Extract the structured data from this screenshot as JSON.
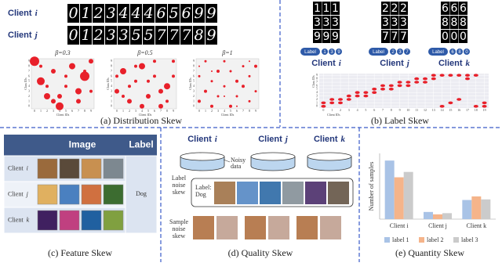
{
  "distribution_skew": {
    "caption": "(a) Distribution Skew",
    "rows": [
      {
        "client": "Client",
        "id": "i",
        "digits": [
          "0",
          "1",
          "2",
          "3",
          "4",
          "4",
          "4",
          "6",
          "5",
          "6",
          "9",
          "9"
        ]
      },
      {
        "client": "Client",
        "id": "j",
        "digits": [
          "0",
          "1",
          "2",
          "3",
          "3",
          "5",
          "5",
          "7",
          "7",
          "7",
          "8",
          "9"
        ]
      }
    ],
    "xlabel": "Client IDs",
    "ylabel": "Class IDs",
    "ticks": [
      0,
      1,
      2,
      3,
      4,
      5,
      6,
      7,
      8,
      9
    ],
    "charts": [
      {
        "title": "β=0.3",
        "x": [
          0,
          1,
          2,
          3,
          4,
          5,
          6,
          7,
          8,
          9,
          1,
          3,
          5,
          7,
          9,
          2,
          4,
          8
        ],
        "y": [
          9,
          5,
          2,
          7,
          0,
          4,
          8,
          1,
          6,
          3,
          8,
          1,
          6,
          3,
          9,
          4,
          2,
          7
        ],
        "sizes": [
          6,
          5,
          4,
          3,
          5,
          2,
          4,
          3,
          6,
          2,
          2,
          3,
          2,
          4,
          3,
          2,
          3,
          2
        ]
      },
      {
        "title": "β=0.5",
        "x": [
          0,
          1,
          2,
          3,
          4,
          5,
          6,
          7,
          8,
          9,
          0,
          2,
          4,
          6,
          8,
          1,
          3,
          5,
          7,
          9
        ],
        "y": [
          3,
          7,
          1,
          5,
          8,
          2,
          6,
          0,
          4,
          9,
          6,
          4,
          0,
          9,
          1,
          2,
          8,
          5,
          3,
          6
        ],
        "sizes": [
          3,
          4,
          3,
          2,
          4,
          3,
          2,
          3,
          4,
          2,
          2,
          2,
          3,
          2,
          2,
          2,
          2,
          2,
          3,
          2
        ]
      },
      {
        "title": "β=1",
        "x": [
          0,
          1,
          2,
          3,
          4,
          5,
          6,
          7,
          8,
          9,
          0,
          1,
          2,
          3,
          4,
          5,
          6,
          7,
          8,
          9,
          0,
          2,
          4,
          6,
          8
        ],
        "y": [
          1,
          3,
          5,
          7,
          9,
          0,
          2,
          4,
          6,
          8,
          6,
          9,
          0,
          2,
          4,
          7,
          5,
          8,
          1,
          3,
          8,
          7,
          2,
          0,
          9
        ],
        "sizes": [
          2,
          2,
          1.5,
          2,
          1.5,
          2,
          1.5,
          2,
          1.5,
          2,
          1.5,
          1.5,
          2,
          1.5,
          1.5,
          1.5,
          2,
          1.5,
          1.5,
          1.5,
          1,
          1,
          1,
          1,
          1
        ]
      }
    ]
  },
  "label_skew": {
    "caption": "(b) Label Skew",
    "legend": "Label",
    "clients": [
      {
        "client": "Client",
        "id": "i",
        "labels": [
          "1",
          "3",
          "9"
        ]
      },
      {
        "client": "Client",
        "id": "j",
        "labels": [
          "2",
          "3",
          "7"
        ]
      },
      {
        "client": "Client",
        "id": "k",
        "labels": [
          "6",
          "8",
          "0"
        ]
      }
    ],
    "chart": {
      "type": "scatter",
      "xlabel": "Client IDs",
      "ylabel": "Class IDs",
      "color": "#e8202a",
      "x": [
        0,
        0,
        1,
        1,
        2,
        2,
        3,
        3,
        4,
        4,
        5,
        5,
        6,
        6,
        7,
        7,
        8,
        8,
        9,
        9,
        10,
        10,
        11,
        11,
        12,
        12,
        13,
        13,
        14,
        14,
        15,
        15,
        16,
        16,
        17,
        17,
        18,
        18,
        19,
        19
      ],
      "y": [
        0,
        1,
        1,
        2,
        1,
        2,
        2,
        3,
        3,
        4,
        3,
        4,
        4,
        5,
        5,
        6,
        5,
        6,
        6,
        7,
        6,
        7,
        7,
        8,
        7,
        8,
        8,
        9,
        0,
        9,
        1,
        9,
        2,
        9,
        8,
        9,
        0,
        9,
        0,
        1
      ],
      "xlim": [
        -0.5,
        19.5
      ],
      "ylim": [
        -0.5,
        9.5
      ],
      "xticks": [
        0,
        1,
        2,
        3,
        4,
        5,
        6,
        7,
        8,
        9,
        10,
        11,
        12,
        13,
        14,
        15,
        16,
        17,
        18,
        19
      ],
      "yticks": [
        0,
        1,
        2,
        3,
        4,
        5,
        6,
        7,
        8,
        9
      ]
    }
  },
  "feature_skew": {
    "caption": "(c) Feature Skew",
    "header": [
      "Image",
      "Label"
    ],
    "rows": [
      {
        "client": "Client",
        "id": "i"
      },
      {
        "client": "Client",
        "id": "j"
      },
      {
        "client": "Client",
        "id": "k"
      }
    ],
    "label": "Dog"
  },
  "quality_skew": {
    "caption": "(d) Quality Skew",
    "clients": [
      {
        "client": "Client",
        "id": "i"
      },
      {
        "client": "Client",
        "id": "j"
      },
      {
        "client": "Client",
        "id": "k"
      }
    ],
    "noisy": [
      "Noisy",
      "data"
    ],
    "label_noise": [
      "Label",
      "noise",
      "skew"
    ],
    "label_text": [
      "Label:",
      "Dog"
    ],
    "sample_noise": [
      "Sample",
      "noise",
      "skew"
    ]
  },
  "chart_data": {
    "type": "bar",
    "caption": "(e) Quantity Skew",
    "ylabel": "Number of samples",
    "categories": [
      "Client i",
      "Client j",
      "Client k"
    ],
    "series": [
      {
        "name": "label 1",
        "color": "#a9c3e6",
        "values": [
          98,
          12,
          32
        ]
      },
      {
        "name": "label 2",
        "color": "#f5b48a",
        "values": [
          70,
          8,
          38
        ]
      },
      {
        "name": "label 3",
        "color": "#cbcbcb",
        "values": [
          79,
          10,
          33
        ]
      }
    ],
    "ylim": [
      0,
      110
    ]
  }
}
